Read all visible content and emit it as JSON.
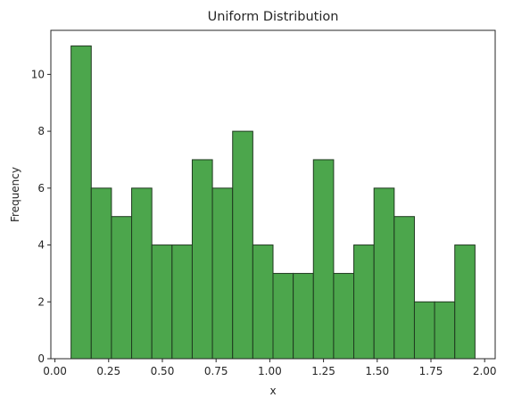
{
  "chart_data": {
    "type": "bar",
    "title": "Uniform Distribution",
    "xlabel": "x",
    "ylabel": "Frequency",
    "bins": [
      {
        "x0": 0.075,
        "x1": 0.169,
        "count": 11
      },
      {
        "x0": 0.169,
        "x1": 0.263,
        "count": 6
      },
      {
        "x0": 0.263,
        "x1": 0.357,
        "count": 5
      },
      {
        "x0": 0.357,
        "x1": 0.451,
        "count": 6
      },
      {
        "x0": 0.451,
        "x1": 0.545,
        "count": 4
      },
      {
        "x0": 0.545,
        "x1": 0.639,
        "count": 4
      },
      {
        "x0": 0.639,
        "x1": 0.733,
        "count": 7
      },
      {
        "x0": 0.733,
        "x1": 0.827,
        "count": 6
      },
      {
        "x0": 0.827,
        "x1": 0.921,
        "count": 8
      },
      {
        "x0": 0.921,
        "x1": 1.015,
        "count": 4
      },
      {
        "x0": 1.015,
        "x1": 1.109,
        "count": 3
      },
      {
        "x0": 1.109,
        "x1": 1.203,
        "count": 3
      },
      {
        "x0": 1.203,
        "x1": 1.297,
        "count": 7
      },
      {
        "x0": 1.297,
        "x1": 1.391,
        "count": 3
      },
      {
        "x0": 1.391,
        "x1": 1.485,
        "count": 4
      },
      {
        "x0": 1.485,
        "x1": 1.579,
        "count": 6
      },
      {
        "x0": 1.579,
        "x1": 1.673,
        "count": 5
      },
      {
        "x0": 1.673,
        "x1": 1.767,
        "count": 2
      },
      {
        "x0": 1.767,
        "x1": 1.861,
        "count": 2
      },
      {
        "x0": 1.861,
        "x1": 1.955,
        "count": 4
      }
    ],
    "xlim": [
      -0.019,
      2.049
    ],
    "ylim": [
      0,
      11.55
    ],
    "xticks": [
      0.0,
      0.25,
      0.5,
      0.75,
      1.0,
      1.25,
      1.5,
      1.75,
      2.0
    ],
    "xtick_labels": [
      "0.00",
      "0.25",
      "0.50",
      "0.75",
      "1.00",
      "1.25",
      "1.50",
      "1.75",
      "2.00"
    ],
    "yticks": [
      0,
      2,
      4,
      6,
      8,
      10
    ],
    "ytick_labels": [
      "0",
      "2",
      "4",
      "6",
      "8",
      "10"
    ],
    "bar_color": "#4ca64c",
    "edge_color": "#1f3a1f",
    "grid": false,
    "legend": "none"
  }
}
